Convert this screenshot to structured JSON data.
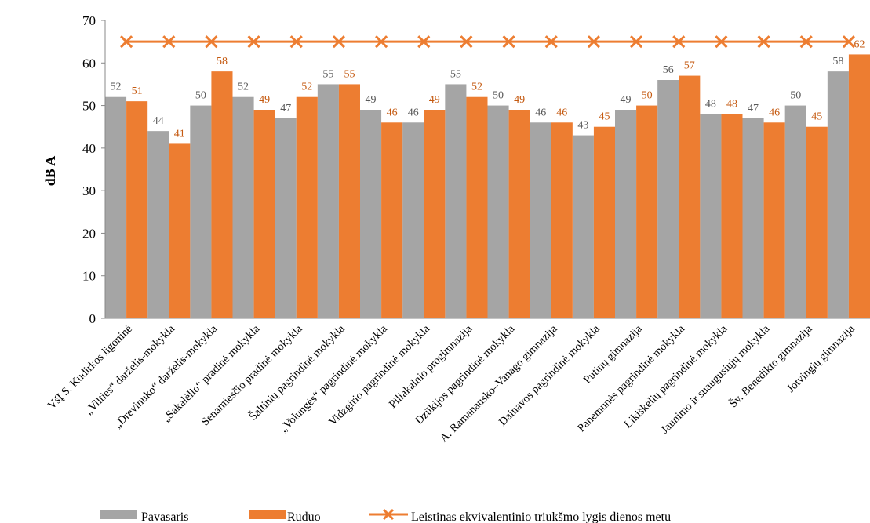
{
  "chart_data": {
    "type": "bar",
    "ylabel": "dB A",
    "ylim": [
      0,
      70
    ],
    "yticks": [
      0,
      10,
      20,
      30,
      40,
      50,
      60,
      70
    ],
    "grid": false,
    "legend_position": "bottom",
    "categories": [
      "VšĮ S. Kudirkos ligoninė",
      "„Vilties“ darželis-mokykla",
      "„Drevinuko“ darželis-mokykla",
      "„Sakalėlio“ pradinė mokykla",
      "Senamiesčio pradinė mokykla",
      "Šaltinių pagrindinė mokykla",
      "„Volungės“ pagrindinė mokykla",
      "Vidzgirio pagrindinė mokykla",
      "Piliakalnio progimnazija",
      "Dzūkijos pagrindinė mokykla",
      "A. Ramanausko–Vanago gimnazija",
      "Dainavos pagrindinė mokykla",
      "Putinų gimnazija",
      "Panemunės pagrindinė mokykla",
      "Likiškėlių pagrindinė mokykla",
      "Jaunimo ir suaugusiųjų mokykla",
      "Šv. Benedikto gimnazija",
      "Jotvingių gimnazija"
    ],
    "series": [
      {
        "name": "Pavasaris",
        "color": "#a5a5a5",
        "label_color": "#595959",
        "values": [
          52,
          44,
          50,
          52,
          47,
          55,
          49,
          46,
          55,
          50,
          46,
          43,
          49,
          56,
          48,
          47,
          50,
          58
        ],
        "labels": [
          "52",
          "44",
          "50",
          "52",
          "47",
          "55",
          "49",
          "46",
          "55",
          "50",
          "46",
          "43",
          "49",
          "56",
          "48",
          "47",
          "50",
          "58"
        ]
      },
      {
        "name": "Ruduo",
        "color": "#ed7d31",
        "label_color": "#c55a11",
        "values": [
          51,
          41,
          58,
          49,
          52,
          55,
          46,
          49,
          52,
          49,
          46,
          45,
          50,
          57,
          48,
          46,
          45,
          62
        ],
        "labels": [
          "51",
          "41",
          "58",
          "49",
          "52",
          "55",
          "46",
          "49",
          "52",
          "49",
          "46",
          "45",
          "50",
          "57",
          "48",
          "46",
          "45",
          "62"
        ]
      }
    ],
    "limit_line": {
      "name": "Leistinas ekvivalentinio triukšmo lygis dienos metu",
      "value": 65,
      "color": "#ed7d31",
      "marker": "x"
    }
  }
}
